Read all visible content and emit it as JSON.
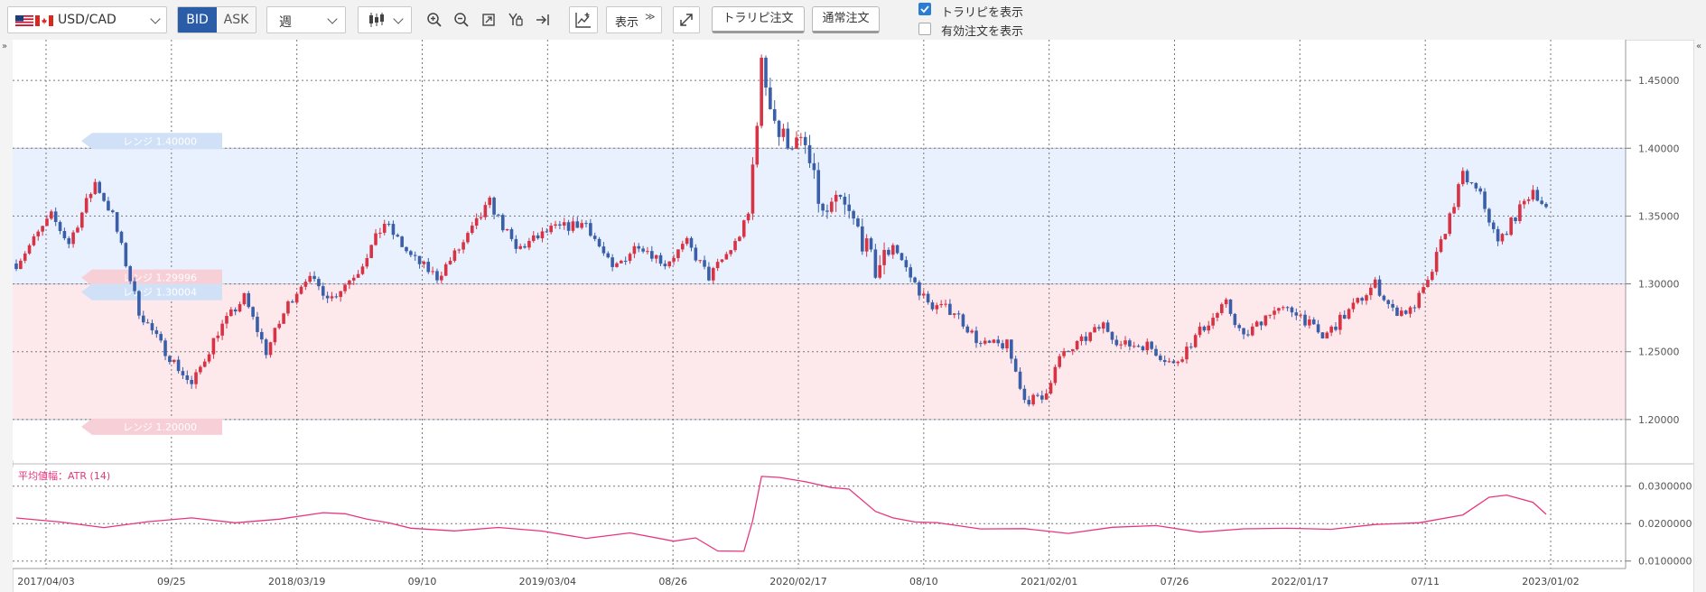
{
  "toolbar": {
    "pair": "USD/CAD",
    "bid_label": "BID",
    "ask_label": "ASK",
    "period": "週",
    "display_label": "表示",
    "trailing_order_label": "トラリピ注文",
    "normal_order_label": "通常注文",
    "show_trailing_label": "トラリピを表示",
    "show_active_orders_label": "有効注文を表示",
    "show_trailing_checked": true,
    "show_active_orders_checked": false
  },
  "colors": {
    "up_candle": "#d83344",
    "down_candle": "#3a5fa8",
    "atr_line": "#e8357d",
    "range_sell_band": "#e8f1fd",
    "range_buy_band": "#fde8ec",
    "accent": "#2b5ca8"
  },
  "icons": [
    "flag-us-icon",
    "flag-ca-icon",
    "candlestick-icon",
    "zoom-in-icon",
    "zoom-out-icon",
    "fit-icon",
    "y-scale-icon",
    "jump-latest-icon",
    "indicator-icon",
    "expand-icon",
    "collapse-left-icon",
    "collapse-right-icon"
  ],
  "range_labels": {
    "upper": "レンジ 1.40000",
    "mid_sell": "レンジ 1.29996",
    "mid_buy": "レンジ 1.30004",
    "lower": "レンジ 1.20000"
  },
  "chart_data": [
    {
      "type": "candlestick",
      "x_ticks": [
        "2017/04/03",
        "09/25",
        "2018/03/19",
        "09/10",
        "2019/03/04",
        "08/26",
        "2020/02/17",
        "08/10",
        "2021/02/01",
        "07/26",
        "2022/01/17",
        "07/11",
        "2023/01/02"
      ],
      "y_ticks": [
        "1.20000",
        "1.25000",
        "1.30000",
        "1.35000",
        "1.40000",
        "1.45000"
      ],
      "ylim": [
        1.17,
        1.48
      ],
      "bands": [
        {
          "from": 1.3,
          "to": 1.4,
          "side": "sell"
        },
        {
          "from": 1.2,
          "to": 1.3,
          "side": "buy"
        }
      ],
      "close_anchors": [
        [
          0,
          1.315
        ],
        [
          8,
          1.35
        ],
        [
          12,
          1.33
        ],
        [
          18,
          1.375
        ],
        [
          22,
          1.35
        ],
        [
          28,
          1.28
        ],
        [
          33,
          1.255
        ],
        [
          40,
          1.225
        ],
        [
          46,
          1.265
        ],
        [
          52,
          1.29
        ],
        [
          57,
          1.25
        ],
        [
          62,
          1.285
        ],
        [
          66,
          1.305
        ],
        [
          72,
          1.29
        ],
        [
          78,
          1.31
        ],
        [
          84,
          1.345
        ],
        [
          90,
          1.32
        ],
        [
          96,
          1.305
        ],
        [
          102,
          1.33
        ],
        [
          108,
          1.36
        ],
        [
          114,
          1.325
        ],
        [
          122,
          1.34
        ],
        [
          130,
          1.345
        ],
        [
          136,
          1.31
        ],
        [
          142,
          1.33
        ],
        [
          148,
          1.315
        ],
        [
          153,
          1.33
        ],
        [
          158,
          1.305
        ],
        [
          164,
          1.33
        ],
        [
          167,
          1.35
        ],
        [
          170,
          1.46
        ],
        [
          174,
          1.41
        ],
        [
          180,
          1.4
        ],
        [
          184,
          1.35
        ],
        [
          188,
          1.36
        ],
        [
          192,
          1.34
        ],
        [
          196,
          1.31
        ],
        [
          200,
          1.33
        ],
        [
          204,
          1.305
        ],
        [
          208,
          1.285
        ],
        [
          214,
          1.28
        ],
        [
          220,
          1.255
        ],
        [
          226,
          1.255
        ],
        [
          230,
          1.215
        ],
        [
          234,
          1.215
        ],
        [
          238,
          1.245
        ],
        [
          244,
          1.26
        ],
        [
          248,
          1.27
        ],
        [
          252,
          1.255
        ],
        [
          258,
          1.255
        ],
        [
          264,
          1.24
        ],
        [
          270,
          1.265
        ],
        [
          276,
          1.285
        ],
        [
          280,
          1.26
        ],
        [
          286,
          1.28
        ],
        [
          292,
          1.28
        ],
        [
          298,
          1.26
        ],
        [
          304,
          1.28
        ],
        [
          310,
          1.3
        ],
        [
          314,
          1.28
        ],
        [
          318,
          1.28
        ],
        [
          322,
          1.3
        ],
        [
          326,
          1.34
        ],
        [
          330,
          1.38
        ],
        [
          334,
          1.365
        ],
        [
          338,
          1.33
        ],
        [
          342,
          1.35
        ],
        [
          346,
          1.37
        ],
        [
          349,
          1.355
        ]
      ]
    },
    {
      "type": "line",
      "title": "平均値幅：ATR (14)",
      "x_ticks": [
        "2017/04/03",
        "09/25",
        "2018/03/19",
        "09/10",
        "2019/03/04",
        "08/26",
        "2020/02/17",
        "08/10",
        "2021/02/01",
        "07/26",
        "2022/01/17",
        "07/11",
        "2023/01/02"
      ],
      "y_ticks": [
        "0.0100000",
        "0.0200000",
        "0.0300000"
      ],
      "ylim": [
        0.008,
        0.035
      ],
      "series": [
        {
          "x": [
            0,
            10,
            20,
            30,
            40,
            50,
            60,
            70,
            75,
            80,
            85,
            90,
            100,
            110,
            120,
            130,
            140,
            150,
            155,
            160,
            166,
            168,
            170,
            174,
            180,
            186,
            190,
            196,
            200,
            205,
            210,
            220,
            230,
            240,
            250,
            260,
            270,
            280,
            290,
            300,
            310,
            320,
            330,
            336,
            340,
            346,
            349
          ],
          "y": [
            0.0215,
            0.0202,
            0.0188,
            0.0208,
            0.0215,
            0.0205,
            0.0212,
            0.023,
            0.0225,
            0.0212,
            0.0205,
            0.0185,
            0.0178,
            0.0188,
            0.018,
            0.016,
            0.0175,
            0.0152,
            0.016,
            0.0128,
            0.0125,
            0.0205,
            0.0325,
            0.0322,
            0.031,
            0.0295,
            0.029,
            0.0235,
            0.0215,
            0.0205,
            0.02,
            0.0188,
            0.0185,
            0.0175,
            0.019,
            0.0195,
            0.018,
            0.0185,
            0.019,
            0.0185,
            0.02,
            0.0205,
            0.0225,
            0.027,
            0.0275,
            0.0255,
            0.0225
          ]
        }
      ]
    }
  ]
}
